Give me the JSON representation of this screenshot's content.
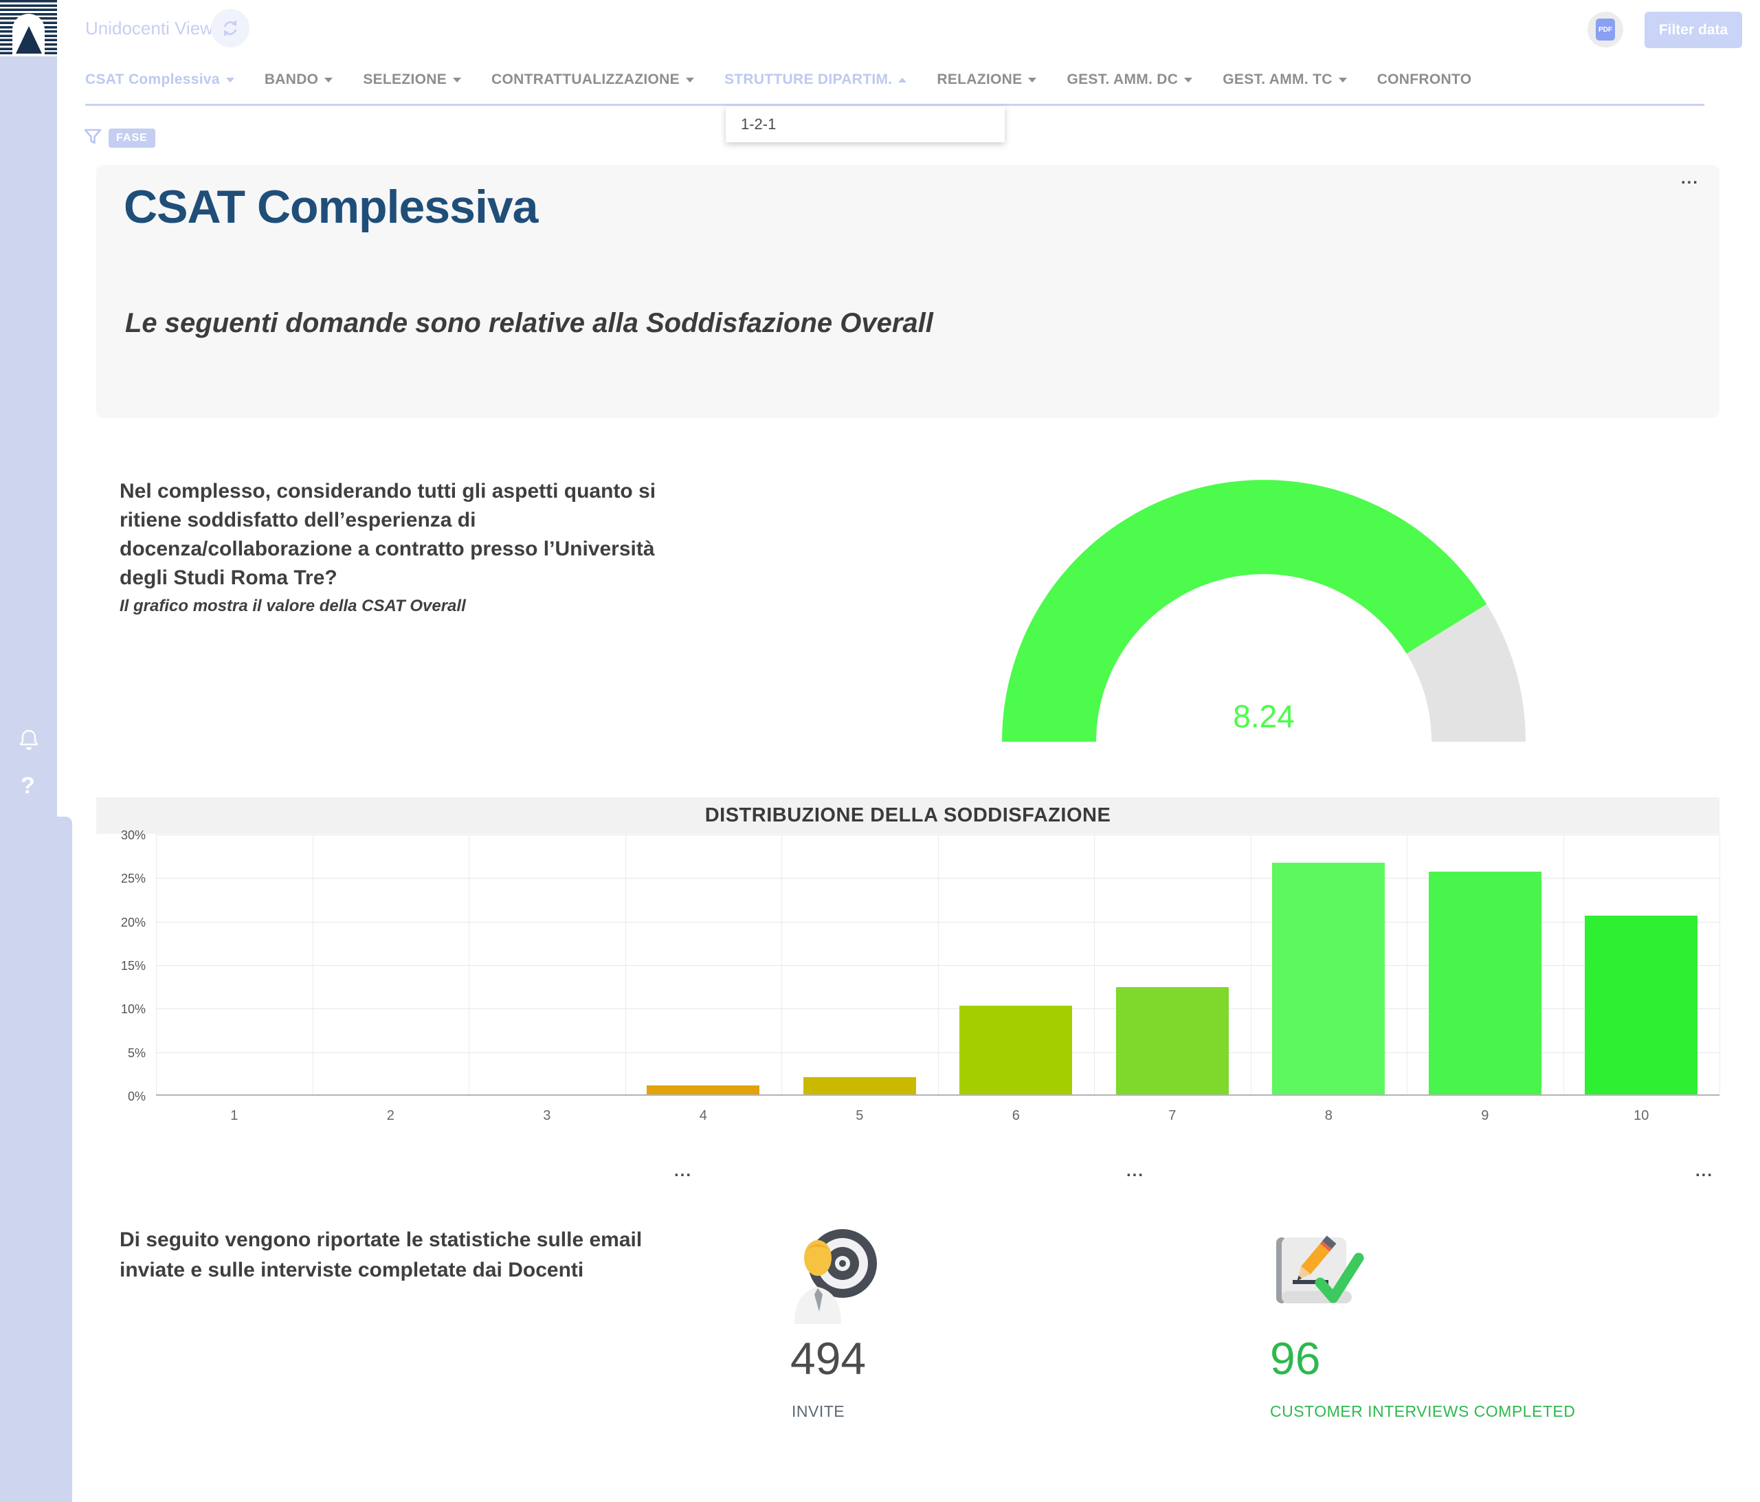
{
  "app": {
    "title": "Unidocenti View",
    "pdf_badge": "PDF",
    "filter_button": "Filter data"
  },
  "nav": {
    "items": [
      {
        "label": "CSAT Complessiva",
        "caret": "down",
        "active": true
      },
      {
        "label": "BANDO",
        "caret": "down",
        "active": false
      },
      {
        "label": "SELEZIONE",
        "caret": "down",
        "active": false
      },
      {
        "label": "CONTRATTUALIZZAZIONE",
        "caret": "down",
        "active": false
      },
      {
        "label": "STRUTTURE DIPARTIM.",
        "caret": "up",
        "active": true
      },
      {
        "label": "RELAZIONE",
        "caret": "down",
        "active": false
      },
      {
        "label": "GEST. AMM. DC",
        "caret": "down",
        "active": false
      },
      {
        "label": "GEST. AMM. TC",
        "caret": "down",
        "active": false
      },
      {
        "label": "CONFRONTO",
        "caret": "none",
        "active": false
      }
    ]
  },
  "nav_dropdown": {
    "items": [
      "1-2-1"
    ]
  },
  "filter_bar": {
    "phase_badge": "FASE"
  },
  "overview_card": {
    "title": "CSAT Complessiva",
    "subtitle": "Le seguenti domande sono relative alla Soddisfazione Overall"
  },
  "question": {
    "text": "Nel complesso, considerando tutti gli aspetti quanto si ritiene soddisfatto dell’esperienza di docenza/collaborazione a contratto presso l’Università degli Studi Roma Tre?",
    "note": "Il grafico mostra il valore della CSAT Overall"
  },
  "chart_data": [
    {
      "type": "gauge",
      "value": 8.24,
      "value_label": "8.24",
      "min": 0,
      "max": 10,
      "color": "#4cfb4c",
      "track_color": "#e3e3e3"
    },
    {
      "type": "bar",
      "title": "DISTRIBUZIONE DELLA SODDISFAZIONE",
      "categories": [
        "1",
        "2",
        "3",
        "4",
        "5",
        "6",
        "7",
        "8",
        "9",
        "10"
      ],
      "values": [
        0,
        0,
        0,
        1,
        2,
        10.2,
        12.3,
        26.6,
        25.6,
        20.5
      ],
      "unit": "%",
      "colors": [
        null,
        null,
        null,
        "#e2a20a",
        "#c9ba00",
        "#a5ce00",
        "#7fd82c",
        "#5df75f",
        "#49f54c",
        "#2fef33"
      ],
      "ylim": [
        0,
        30
      ],
      "ytick_step": 5,
      "ytick_labels": [
        "0%",
        "5%",
        "10%",
        "15%",
        "20%",
        "25%",
        "30%"
      ],
      "grid": true,
      "xlabel": "",
      "ylabel": ""
    }
  ],
  "stats": {
    "intro": "Di seguito vengono riportate le statistiche sulle email inviate e sulle interviste completate dai Docenti",
    "invite": {
      "value": "494",
      "label": "INVITE"
    },
    "interviews": {
      "value": "96",
      "label": "CUSTOMER INTERVIEWS COMPLETED"
    }
  },
  "misc": {
    "ellipsis": "..."
  }
}
